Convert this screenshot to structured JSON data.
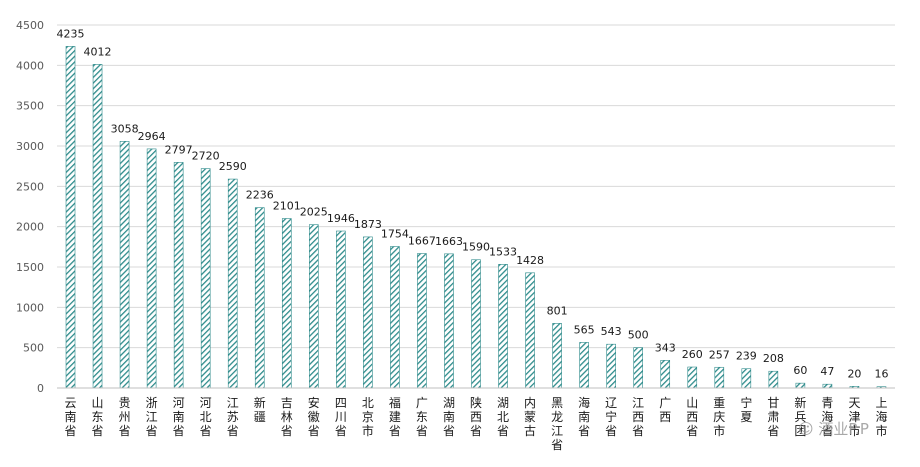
{
  "chart_data": {
    "type": "bar",
    "title": "",
    "xlabel": "",
    "ylabel": "",
    "ylim": [
      0,
      4500
    ],
    "yticks": [
      0,
      500,
      1000,
      1500,
      2000,
      2500,
      3000,
      3500,
      4000,
      4500
    ],
    "grid": true,
    "legend": "none",
    "bar_color": "#2e8b8b",
    "categories": [
      "云南省",
      "山东省",
      "贵州省",
      "浙江省",
      "河南省",
      "河北省",
      "江苏省",
      "新疆",
      "吉林省",
      "安徽省",
      "四川省",
      "北京市",
      "福建省",
      "广东省",
      "湖南省",
      "陕西省",
      "湖北省",
      "内蒙古",
      "黑龙江省",
      "海南省",
      "辽宁省",
      "江西省",
      "广西",
      "山西省",
      "重庆市",
      "宁夏",
      "甘肃省",
      "新兵团",
      "青海省",
      "天津市",
      "上海市"
    ],
    "values": [
      4235,
      4012,
      3058,
      2964,
      2797,
      2720,
      2590,
      2236,
      2101,
      2025,
      1946,
      1873,
      1754,
      1667,
      1663,
      1590,
      1533,
      1428,
      801,
      565,
      543,
      500,
      343,
      260,
      257,
      239,
      208,
      60,
      47,
      20,
      16
    ]
  },
  "watermark": "酒业P.P"
}
